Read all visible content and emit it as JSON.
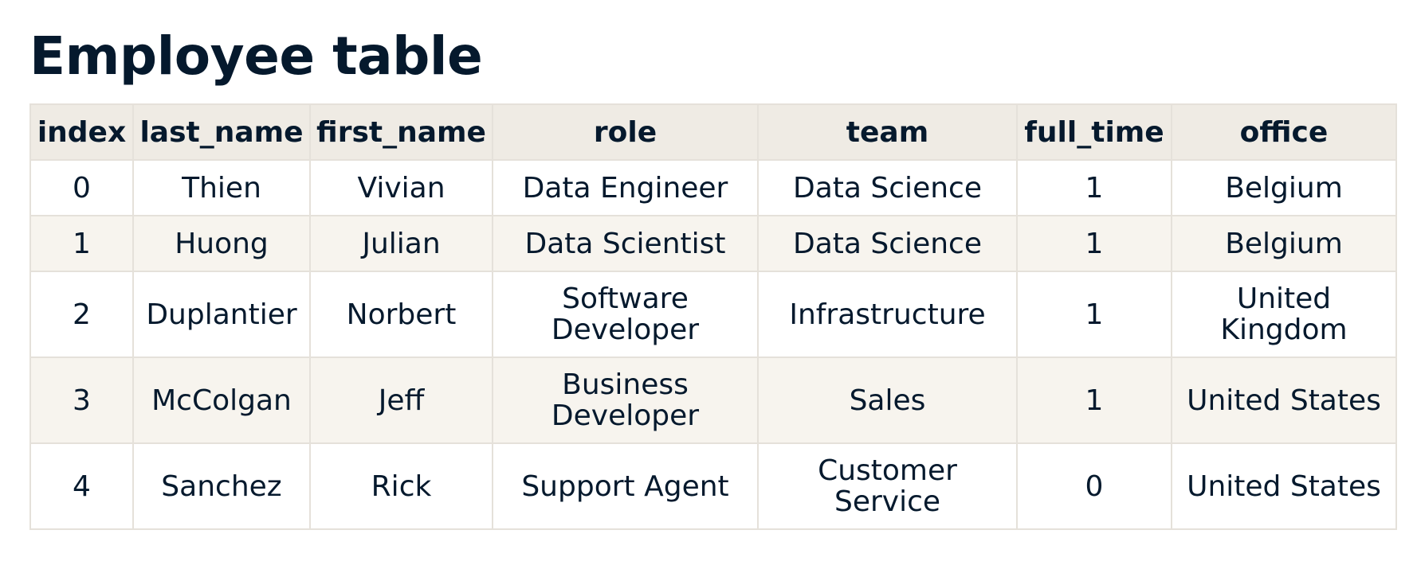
{
  "page": {
    "title": "Employee table"
  },
  "table": {
    "columns": [
      "index",
      "last_name",
      "first_name",
      "role",
      "team",
      "full_time",
      "office"
    ],
    "rows": [
      [
        "0",
        "Thien",
        "Vivian",
        "Data Engineer",
        "Data Science",
        "1",
        "Belgium"
      ],
      [
        "1",
        "Huong",
        "Julian",
        "Data Scientist",
        "Data Science",
        "1",
        "Belgium"
      ],
      [
        "2",
        "Duplantier",
        "Norbert",
        "Software Developer",
        "Infrastructure",
        "1",
        "United Kingdom"
      ],
      [
        "3",
        "McColgan",
        "Jeff",
        "Business Developer",
        "Sales",
        "1",
        "United States"
      ],
      [
        "4",
        "Sanchez",
        "Rick",
        "Support Agent",
        "Customer Service",
        "0",
        "United States"
      ]
    ]
  }
}
